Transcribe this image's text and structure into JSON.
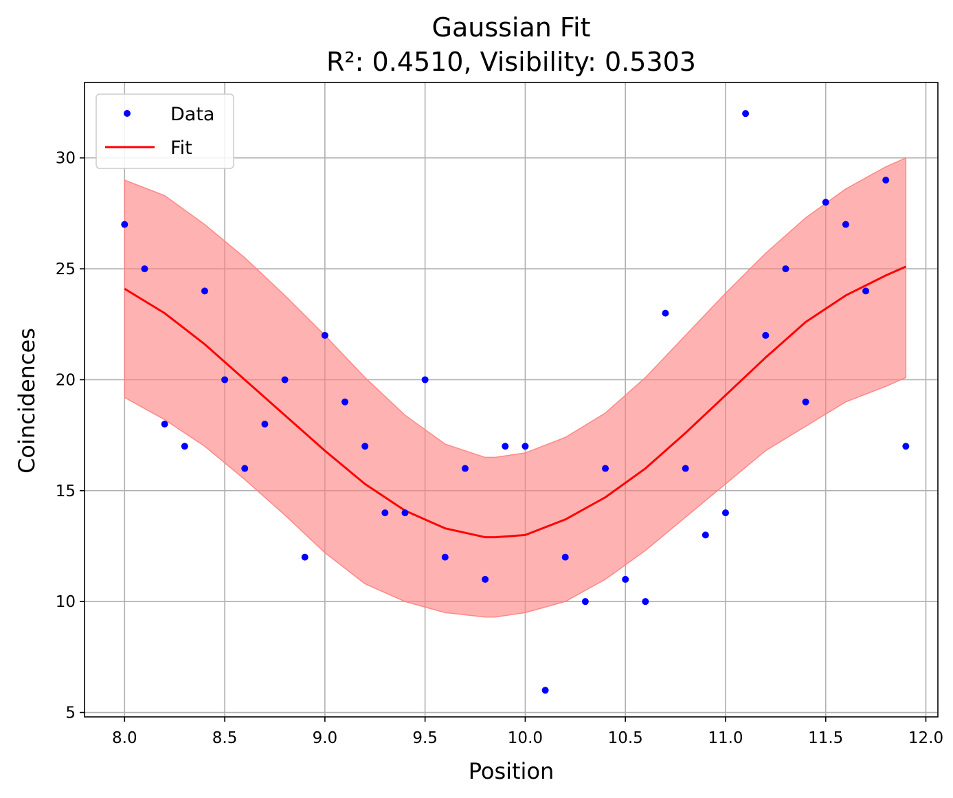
{
  "chart_data": {
    "type": "scatter",
    "title": "Gaussian Fit",
    "subtitle": "R²: 0.4510, Visibility: 0.5303",
    "xlabel": "Position",
    "ylabel": "Coincidences",
    "xlim": [
      7.8,
      12.06
    ],
    "ylim": [
      4.8,
      33.4
    ],
    "x_ticks": [
      8.0,
      8.5,
      9.0,
      9.5,
      10.0,
      10.5,
      11.0,
      11.5,
      12.0
    ],
    "x_tick_labels": [
      "8.0",
      "8.5",
      "9.0",
      "9.5",
      "10.0",
      "10.5",
      "11.0",
      "11.5",
      "12.0"
    ],
    "y_ticks": [
      5,
      10,
      15,
      20,
      25,
      30
    ],
    "y_tick_labels": [
      "5",
      "10",
      "15",
      "20",
      "25",
      "30"
    ],
    "grid": true,
    "legend": {
      "position": "top-left",
      "entries": [
        {
          "label": "Data",
          "kind": "marker",
          "color": "#0000ff"
        },
        {
          "label": "Fit",
          "kind": "line",
          "color": "#ff0000"
        }
      ]
    },
    "series": [
      {
        "name": "Data",
        "kind": "scatter",
        "color": "#0000ff",
        "x": [
          8.0,
          8.1,
          8.2,
          8.3,
          8.4,
          8.5,
          8.6,
          8.7,
          8.8,
          8.9,
          9.0,
          9.1,
          9.2,
          9.3,
          9.4,
          9.5,
          9.6,
          9.7,
          9.8,
          9.9,
          10.0,
          10.1,
          10.2,
          10.3,
          10.4,
          10.5,
          10.6,
          10.7,
          10.8,
          10.9,
          11.0,
          11.1,
          11.2,
          11.3,
          11.4,
          11.5,
          11.6,
          11.7,
          11.8,
          11.9
        ],
        "y": [
          27,
          25,
          18,
          17,
          24,
          20,
          16,
          18,
          20,
          12,
          22,
          19,
          17,
          14,
          14,
          20,
          12,
          16,
          11,
          17,
          17,
          6,
          12,
          10,
          16,
          11,
          10,
          23,
          16,
          13,
          14,
          32,
          22,
          25,
          19,
          28,
          27,
          24,
          29,
          17
        ]
      },
      {
        "name": "Fit",
        "kind": "line",
        "color": "#ff0000",
        "x": [
          8.0,
          8.2,
          8.4,
          8.6,
          8.8,
          9.0,
          9.2,
          9.4,
          9.6,
          9.8,
          9.85,
          10.0,
          10.2,
          10.4,
          10.6,
          10.8,
          11.0,
          11.2,
          11.4,
          11.6,
          11.8,
          11.9
        ],
        "y": [
          24.1,
          23.0,
          21.6,
          20.0,
          18.4,
          16.8,
          15.3,
          14.1,
          13.3,
          12.9,
          12.9,
          13.0,
          13.7,
          14.7,
          16.0,
          17.6,
          19.3,
          21.0,
          22.6,
          23.8,
          24.7,
          25.1
        ],
        "band_color": "#ff7f7f",
        "band_upper": [
          29.0,
          28.3,
          27.0,
          25.5,
          23.8,
          22.0,
          20.1,
          18.4,
          17.1,
          16.5,
          16.5,
          16.7,
          17.4,
          18.5,
          20.1,
          22.0,
          23.9,
          25.7,
          27.3,
          28.6,
          29.6,
          30.0
        ],
        "band_lower": [
          19.2,
          18.2,
          17.0,
          15.5,
          13.9,
          12.2,
          10.8,
          10.0,
          9.5,
          9.3,
          9.3,
          9.5,
          10.0,
          11.0,
          12.3,
          13.8,
          15.3,
          16.8,
          17.9,
          19.0,
          19.7,
          20.1
        ]
      }
    ]
  }
}
